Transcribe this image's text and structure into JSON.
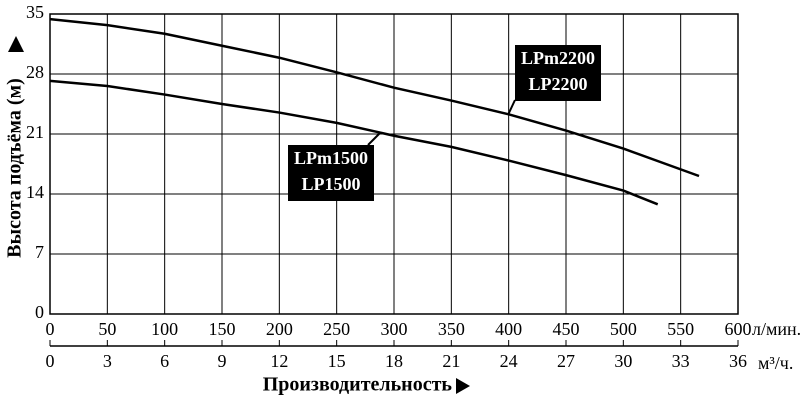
{
  "chart_data": {
    "type": "line",
    "y_title": "Высота подъёма (м)",
    "x_title": "Производительность",
    "x_unit": "л/мин.",
    "x2_unit": "м³/ч.",
    "xlim": [
      0,
      600
    ],
    "xticks": [
      0,
      50,
      100,
      150,
      200,
      250,
      300,
      350,
      400,
      450,
      500,
      550,
      600
    ],
    "x2lim": [
      0,
      36
    ],
    "x2ticks": [
      0,
      3,
      6,
      9,
      12,
      15,
      18,
      21,
      24,
      27,
      30,
      33,
      36
    ],
    "ylim": [
      0,
      35
    ],
    "yticks": [
      0,
      7,
      14,
      21,
      28,
      35
    ],
    "grid": true,
    "series": [
      {
        "name": "LPm2200",
        "name2": "LP2200",
        "color": "#000000",
        "x": [
          0,
          50,
          100,
          150,
          200,
          250,
          300,
          350,
          400,
          450,
          500,
          566
        ],
        "values": [
          34.4,
          33.7,
          32.7,
          31.3,
          29.9,
          28.2,
          26.4,
          24.9,
          23.3,
          21.4,
          19.3,
          16.1
        ]
      },
      {
        "name": "LPm1500",
        "name2": "LP1500",
        "color": "#000000",
        "x": [
          0,
          50,
          100,
          150,
          200,
          250,
          300,
          350,
          400,
          450,
          500,
          530
        ],
        "values": [
          27.2,
          26.6,
          25.6,
          24.5,
          23.5,
          22.3,
          20.8,
          19.5,
          17.9,
          16.2,
          14.4,
          12.8
        ]
      }
    ]
  }
}
